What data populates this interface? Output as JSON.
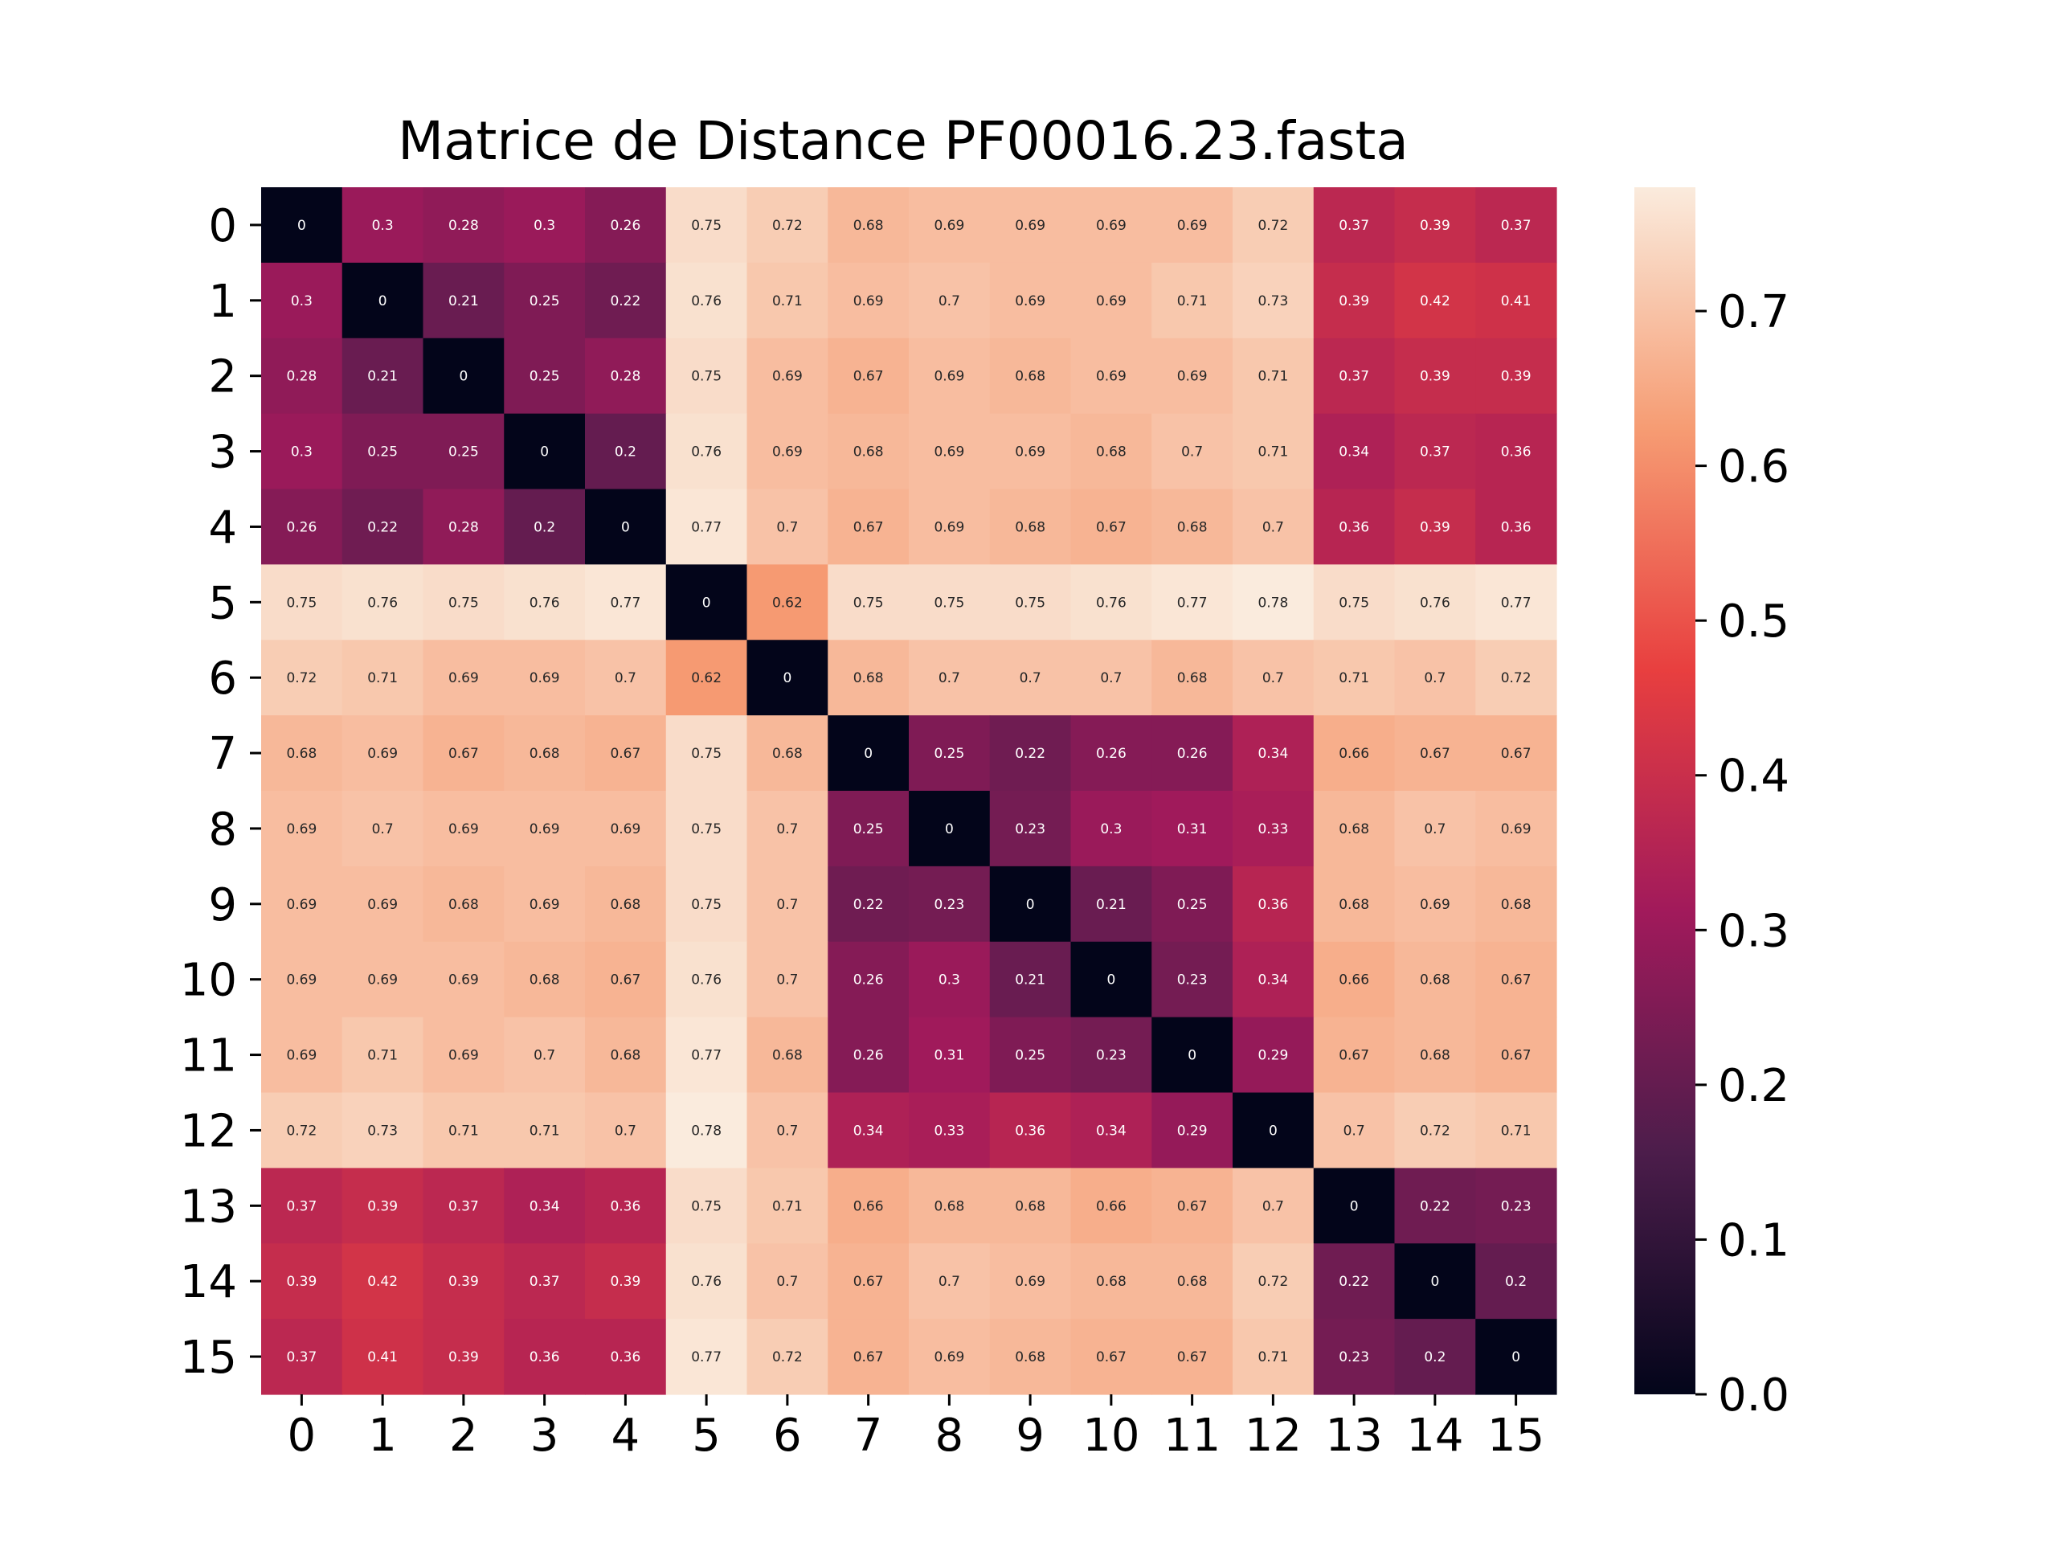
{
  "chart_data": {
    "type": "heatmap",
    "title": "Matrice de Distance PF00016.23.fasta",
    "xlabel": "",
    "ylabel": "",
    "x_categories": [
      "0",
      "1",
      "2",
      "3",
      "4",
      "5",
      "6",
      "7",
      "8",
      "9",
      "10",
      "11",
      "12",
      "13",
      "14",
      "15"
    ],
    "y_categories": [
      "0",
      "1",
      "2",
      "3",
      "4",
      "5",
      "6",
      "7",
      "8",
      "9",
      "10",
      "11",
      "12",
      "13",
      "14",
      "15"
    ],
    "values": [
      [
        0,
        0.3,
        0.28,
        0.3,
        0.26,
        0.75,
        0.72,
        0.68,
        0.69,
        0.69,
        0.69,
        0.69,
        0.72,
        0.37,
        0.39,
        0.37
      ],
      [
        0.3,
        0,
        0.21,
        0.25,
        0.22,
        0.76,
        0.71,
        0.69,
        0.7,
        0.69,
        0.69,
        0.71,
        0.73,
        0.39,
        0.42,
        0.41
      ],
      [
        0.28,
        0.21,
        0,
        0.25,
        0.28,
        0.75,
        0.69,
        0.67,
        0.69,
        0.68,
        0.69,
        0.69,
        0.71,
        0.37,
        0.39,
        0.39
      ],
      [
        0.3,
        0.25,
        0.25,
        0,
        0.2,
        0.76,
        0.69,
        0.68,
        0.69,
        0.69,
        0.68,
        0.7,
        0.71,
        0.34,
        0.37,
        0.36
      ],
      [
        0.26,
        0.22,
        0.28,
        0.2,
        0,
        0.77,
        0.7,
        0.67,
        0.69,
        0.68,
        0.67,
        0.68,
        0.7,
        0.36,
        0.39,
        0.36
      ],
      [
        0.75,
        0.76,
        0.75,
        0.76,
        0.77,
        0,
        0.62,
        0.75,
        0.75,
        0.75,
        0.76,
        0.77,
        0.78,
        0.75,
        0.76,
        0.77
      ],
      [
        0.72,
        0.71,
        0.69,
        0.69,
        0.7,
        0.62,
        0,
        0.68,
        0.7,
        0.7,
        0.7,
        0.68,
        0.7,
        0.71,
        0.7,
        0.72
      ],
      [
        0.68,
        0.69,
        0.67,
        0.68,
        0.67,
        0.75,
        0.68,
        0,
        0.25,
        0.22,
        0.26,
        0.26,
        0.34,
        0.66,
        0.67,
        0.67
      ],
      [
        0.69,
        0.7,
        0.69,
        0.69,
        0.69,
        0.75,
        0.7,
        0.25,
        0,
        0.23,
        0.3,
        0.31,
        0.33,
        0.68,
        0.7,
        0.69
      ],
      [
        0.69,
        0.69,
        0.68,
        0.69,
        0.68,
        0.75,
        0.7,
        0.22,
        0.23,
        0,
        0.21,
        0.25,
        0.36,
        0.68,
        0.69,
        0.68
      ],
      [
        0.69,
        0.69,
        0.69,
        0.68,
        0.67,
        0.76,
        0.7,
        0.26,
        0.3,
        0.21,
        0,
        0.23,
        0.34,
        0.66,
        0.68,
        0.67
      ],
      [
        0.69,
        0.71,
        0.69,
        0.7,
        0.68,
        0.77,
        0.68,
        0.26,
        0.31,
        0.25,
        0.23,
        0,
        0.29,
        0.67,
        0.68,
        0.67
      ],
      [
        0.72,
        0.73,
        0.71,
        0.71,
        0.7,
        0.78,
        0.7,
        0.34,
        0.33,
        0.36,
        0.34,
        0.29,
        0,
        0.7,
        0.72,
        0.71
      ],
      [
        0.37,
        0.39,
        0.37,
        0.34,
        0.36,
        0.75,
        0.71,
        0.66,
        0.68,
        0.68,
        0.66,
        0.67,
        0.7,
        0,
        0.22,
        0.23
      ],
      [
        0.39,
        0.42,
        0.39,
        0.37,
        0.39,
        0.76,
        0.7,
        0.67,
        0.7,
        0.69,
        0.68,
        0.68,
        0.72,
        0.22,
        0,
        0.2
      ],
      [
        0.37,
        0.41,
        0.39,
        0.36,
        0.36,
        0.77,
        0.72,
        0.67,
        0.69,
        0.68,
        0.67,
        0.67,
        0.71,
        0.23,
        0.2,
        0
      ]
    ],
    "annotated": true,
    "colormap": "rocket",
    "colormap_stops": [
      "#03051a",
      "#4c1d4b",
      "#a11a5b",
      "#e83f3f",
      "#f69c73",
      "#faebdd"
    ],
    "colorbar": {
      "range": [
        0,
        0.78
      ],
      "ticks": [
        0.0,
        0.1,
        0.2,
        0.3,
        0.4,
        0.5,
        0.6,
        0.7
      ],
      "tick_labels": [
        "0.0",
        "0.1",
        "0.2",
        "0.3",
        "0.4",
        "0.5",
        "0.6",
        "0.7"
      ]
    },
    "grid": false
  }
}
